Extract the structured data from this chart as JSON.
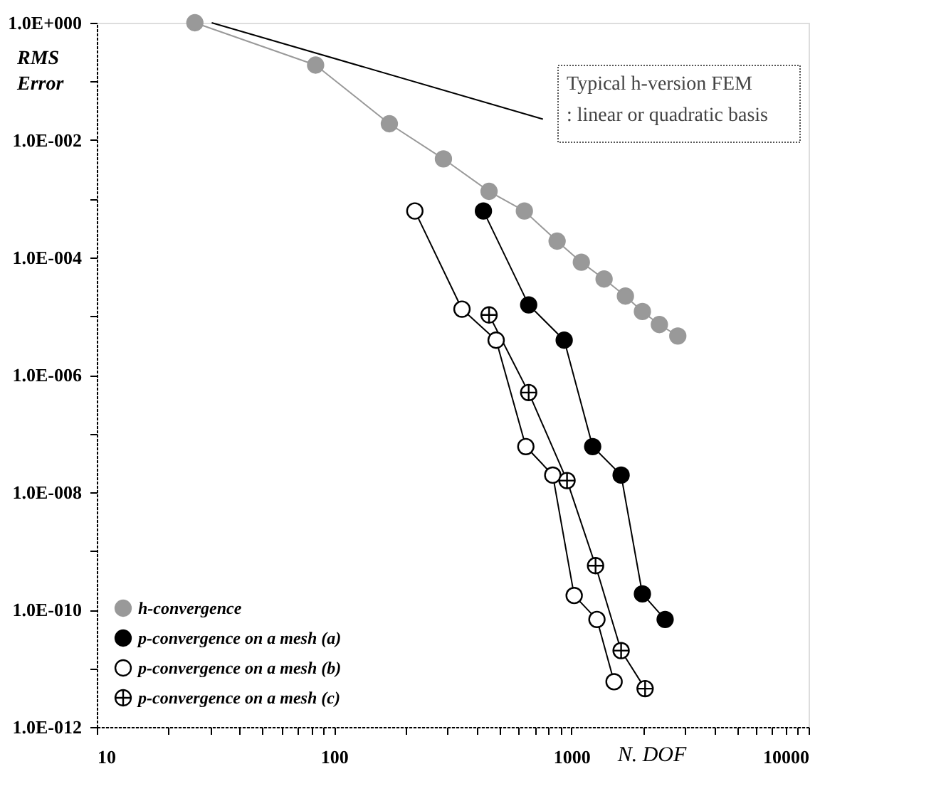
{
  "chart_data": {
    "type": "line",
    "xlabel": "N. DOF",
    "ylabel": "RMS Error",
    "log": "xy",
    "xlim": [
      10,
      10000
    ],
    "ylim": [
      1e-12,
      1
    ],
    "xticks": [
      10,
      {
        "value": 20,
        "label": null
      },
      {
        "value": 30,
        "label": null
      },
      {
        "value": 40,
        "label": null
      },
      {
        "value": 50,
        "label": null
      },
      {
        "value": 60,
        "label": null
      },
      {
        "value": 70,
        "label": null
      },
      {
        "value": 80,
        "label": null
      },
      {
        "value": 90,
        "label": null
      },
      100,
      {
        "value": 200,
        "label": null
      },
      {
        "value": 300,
        "label": null
      },
      {
        "value": 400,
        "label": null
      },
      {
        "value": 500,
        "label": null
      },
      {
        "value": 600,
        "label": null
      },
      {
        "value": 700,
        "label": null
      },
      {
        "value": 800,
        "label": null
      },
      {
        "value": 900,
        "label": null
      },
      1000,
      {
        "value": 2000,
        "label": null
      },
      {
        "value": 3000,
        "label": null
      },
      {
        "value": 4000,
        "label": null
      },
      {
        "value": 5000,
        "label": null
      },
      {
        "value": 6000,
        "label": null
      },
      {
        "value": 7000,
        "label": null
      },
      {
        "value": 8000,
        "label": null
      },
      {
        "value": 9000,
        "label": null
      },
      10000
    ],
    "yticks": [
      {
        "value": 1e-12,
        "label": "1.0E-012"
      },
      {
        "value": 1e-11,
        "label": null
      },
      {
        "value": 1e-10,
        "label": "1.0E-010"
      },
      {
        "value": 1e-09,
        "label": null
      },
      {
        "value": 1e-08,
        "label": "1.0E-008"
      },
      {
        "value": 1e-07,
        "label": null
      },
      {
        "value": 1e-06,
        "label": "1.0E-006"
      },
      {
        "value": 1e-05,
        "label": null
      },
      {
        "value": 0.0001,
        "label": "1.0E-004"
      },
      {
        "value": 0.001,
        "label": null
      },
      {
        "value": 0.01,
        "label": "1.0E-002"
      },
      {
        "value": 0.1,
        "label": null
      },
      {
        "value": 1,
        "label": "1.0E+000"
      }
    ],
    "grid": false,
    "legend": "bottom left",
    "annotations": [
      "Typical h-version FEM",
      ": linear or quadratic basis"
    ],
    "series": [
      {
        "name": "h-convergence",
        "color": "#999999",
        "marker": "circle",
        "x": [
          25.9,
          83.6,
          171,
          289,
          450,
          634,
          871,
          1102,
          1374,
          1690,
          1993,
          2350,
          2810
        ],
        "values": [
          1,
          0.19,
          0.019,
          0.0048,
          0.00134,
          0.00062,
          0.00019,
          8.3e-05,
          4.3e-05,
          2.2e-05,
          1.2e-05,
          7.2e-06,
          4.6e-06
        ]
      },
      {
        "name": "p-convergence on a mesh (a)",
        "color": "#000000",
        "marker": "circle",
        "x": [
          426,
          661,
          933,
          1230,
          1621,
          1993,
          2485
        ],
        "values": [
          0.00062,
          1.56e-05,
          3.9e-06,
          6e-08,
          1.96e-08,
          1.85e-10,
          6.8e-11
        ]
      },
      {
        "name": "p-convergence on a mesh (b)",
        "color": "#000000",
        "marker": "circle_open",
        "x": [
          219,
          346,
          482,
          643,
          835,
          1028,
          1282,
          1514
        ],
        "values": [
          0.00062,
          1.32e-05,
          3.9e-06,
          6e-08,
          1.96e-08,
          1.74e-10,
          6.8e-11,
          5.9e-12
        ]
      },
      {
        "name": "p-convergence on a mesh (c)",
        "color": "#000000",
        "marker": "cross",
        "x": [
          450,
          661,
          959,
          1265,
          1621,
          2046
        ],
        "values": [
          1.05e-05,
          5e-07,
          1.58e-08,
          5.6e-10,
          2e-11,
          4.5e-12
        ]
      },
      {
        "type": "line",
        "color": "#000000",
        "marker": "none",
        "x": [
          30.5,
          759
        ],
        "values": [
          1,
          0.0228
        ]
      }
    ]
  }
}
